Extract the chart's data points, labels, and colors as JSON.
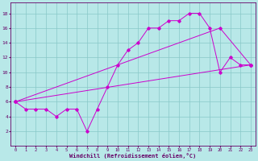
{
  "xlabel": "Windchill (Refroidissement éolien,°C)",
  "bg_color": "#b8e8e8",
  "grid_color": "#88c8c8",
  "line_color": "#cc00cc",
  "spine_color": "#660066",
  "tick_color": "#660066",
  "xlabel_color": "#660066",
  "xlim_min": -0.5,
  "xlim_max": 23.5,
  "ylim_min": 0,
  "ylim_max": 19.5,
  "xticks": [
    0,
    1,
    2,
    3,
    4,
    5,
    6,
    7,
    8,
    9,
    10,
    11,
    12,
    13,
    14,
    15,
    16,
    17,
    18,
    19,
    20,
    21,
    22,
    23
  ],
  "yticks": [
    2,
    4,
    6,
    8,
    10,
    12,
    14,
    16,
    18
  ],
  "line1_x": [
    0,
    1,
    2,
    3,
    4,
    5,
    6,
    7,
    8,
    9,
    10,
    11,
    12,
    13,
    14,
    15,
    16,
    17,
    18,
    19,
    20,
    21,
    22,
    23
  ],
  "line1_y": [
    6,
    5,
    5,
    5,
    4,
    5,
    5,
    2,
    5,
    8,
    11,
    13,
    14,
    16,
    16,
    17,
    17,
    18,
    18,
    16,
    10,
    12,
    11,
    11
  ],
  "line2_x": [
    0,
    23
  ],
  "line2_y": [
    6,
    11
  ],
  "line3_x": [
    0,
    20,
    23
  ],
  "line3_y": [
    6,
    16,
    11
  ]
}
